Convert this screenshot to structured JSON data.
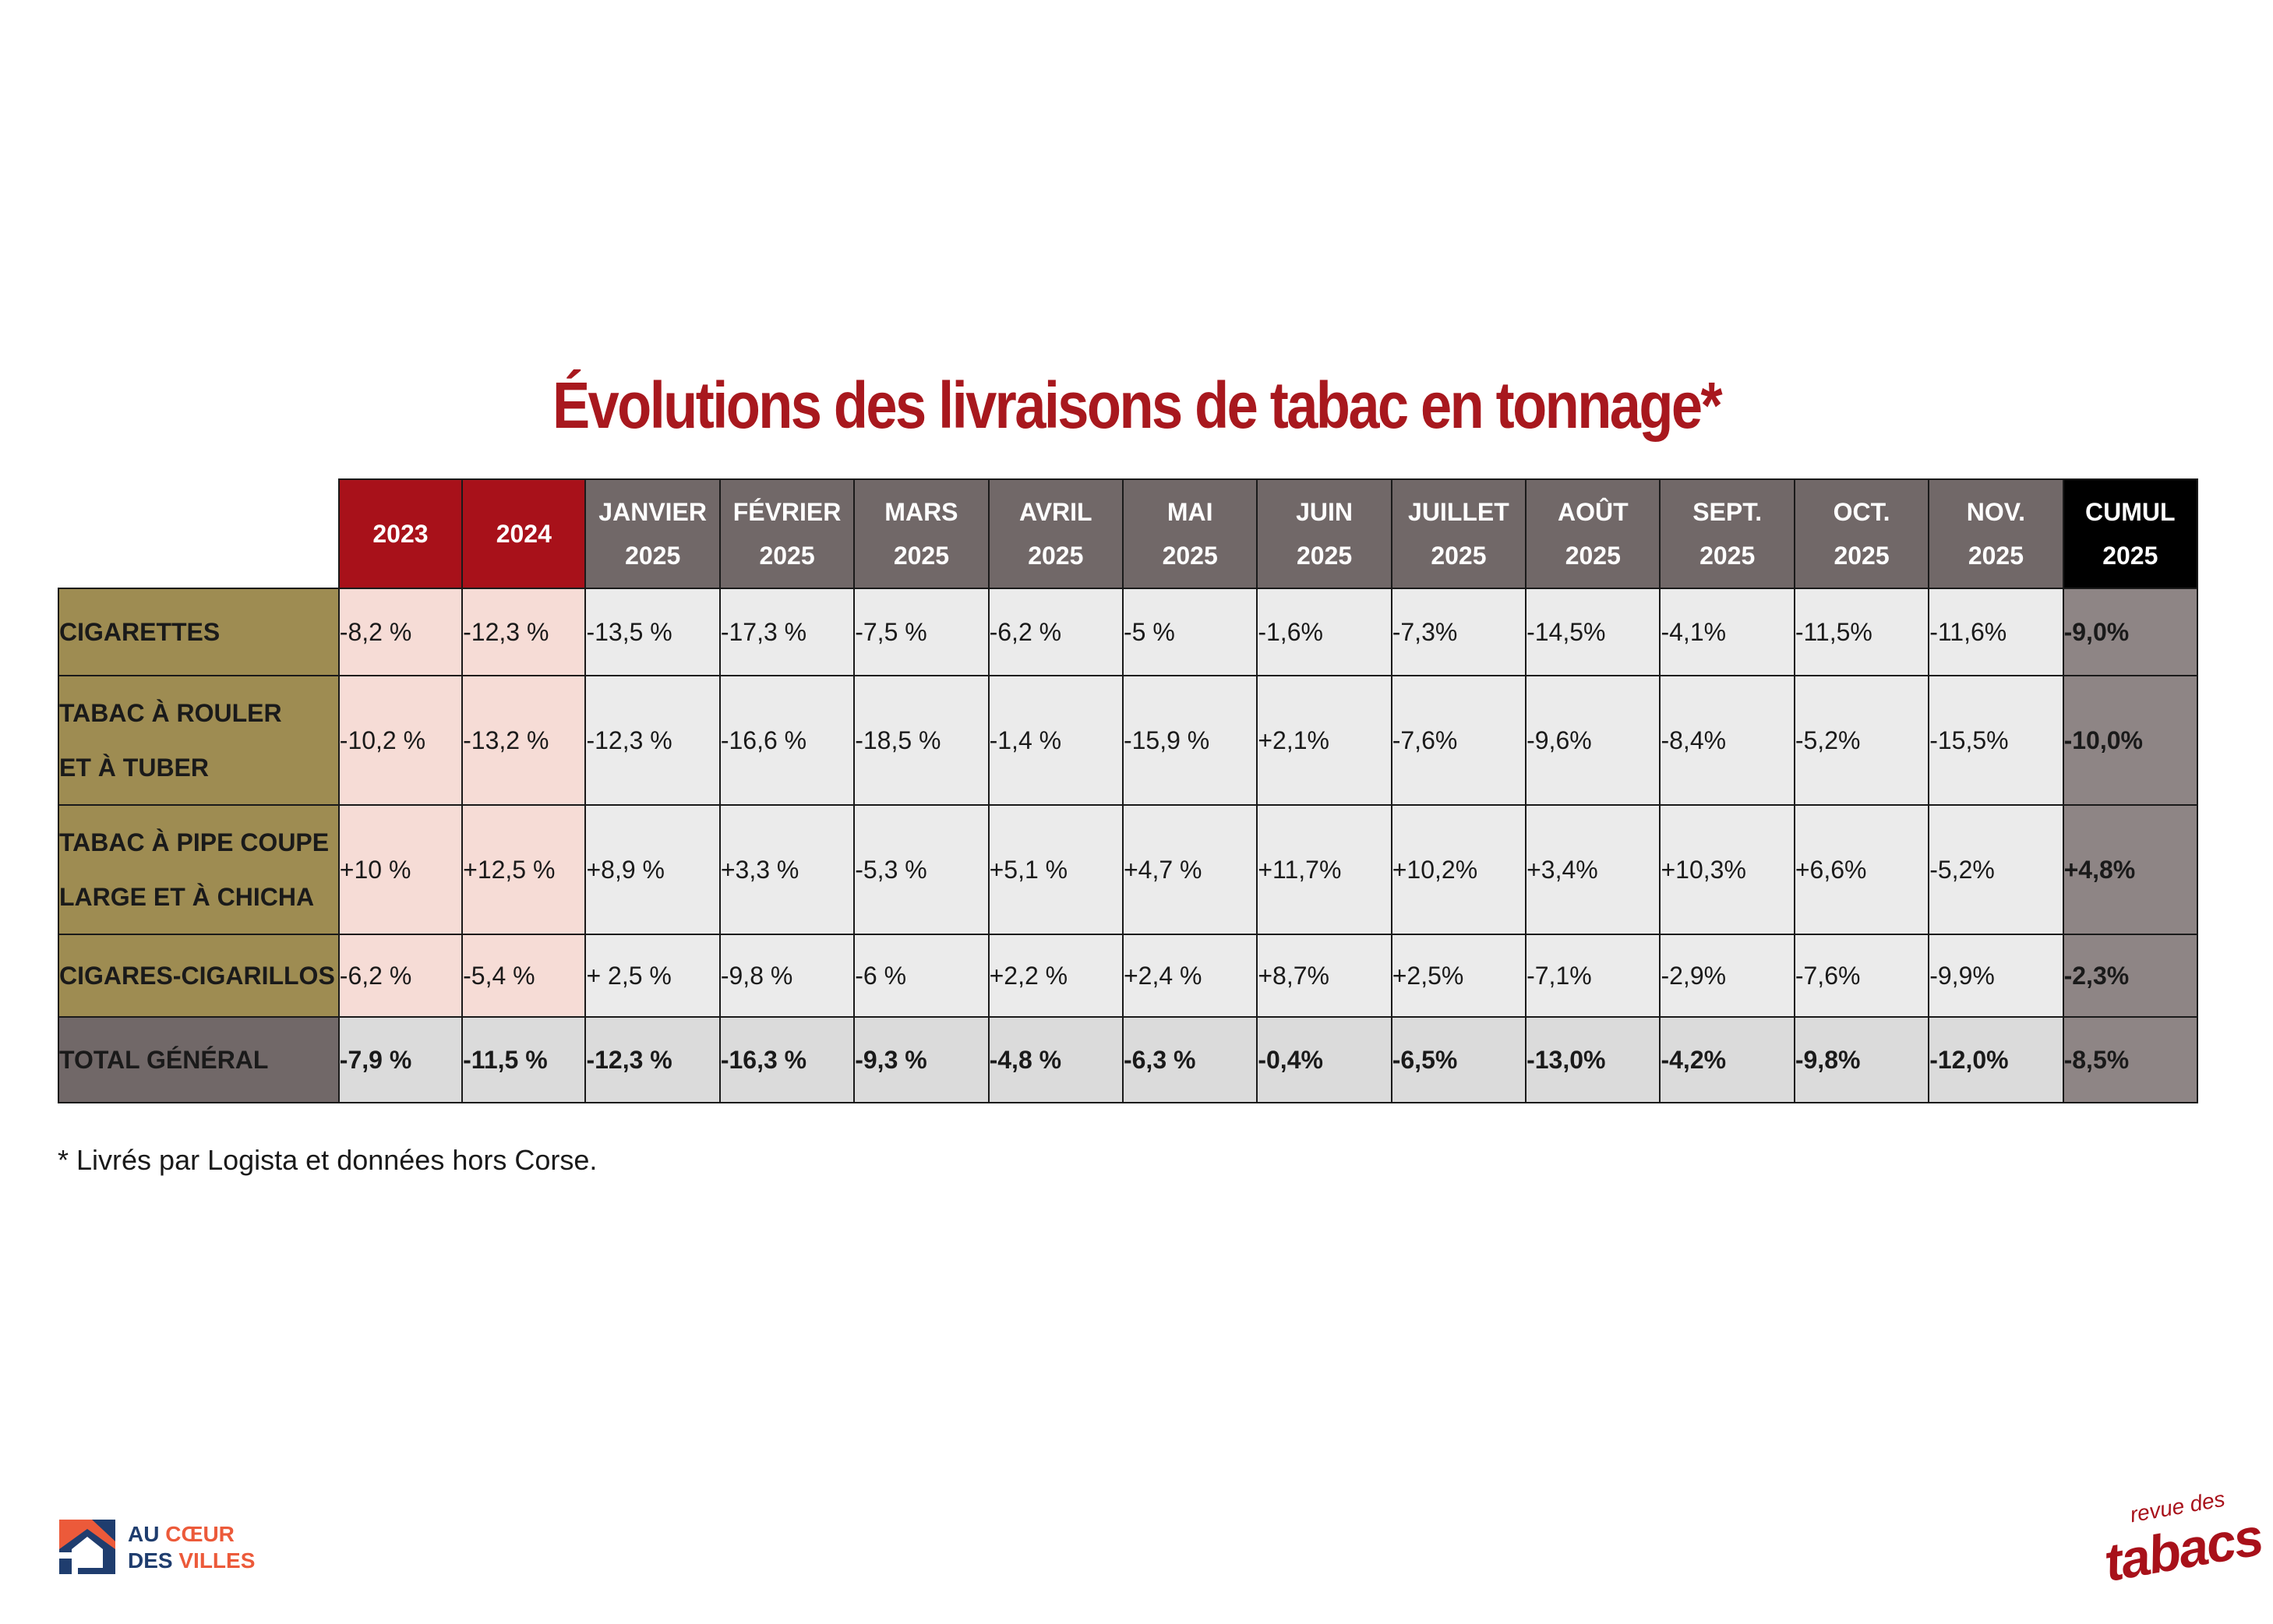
{
  "chart_data": {
    "type": "table",
    "title": "Évolutions des livraisons de tabac en tonnage*",
    "columns": [
      {
        "line1": "2023",
        "line2": ""
      },
      {
        "line1": "2024",
        "line2": ""
      },
      {
        "line1": "JANVIER",
        "line2": "2025"
      },
      {
        "line1": "FÉVRIER",
        "line2": "2025"
      },
      {
        "line1": "MARS",
        "line2": "2025"
      },
      {
        "line1": "AVRIL",
        "line2": "2025"
      },
      {
        "line1": "MAI",
        "line2": "2025"
      },
      {
        "line1": "JUIN",
        "line2": "2025"
      },
      {
        "line1": "JUILLET",
        "line2": "2025"
      },
      {
        "line1": "AOÛT",
        "line2": "2025"
      },
      {
        "line1": "SEPT.",
        "line2": "2025"
      },
      {
        "line1": "OCT.",
        "line2": "2025"
      },
      {
        "line1": "NOV.",
        "line2": "2025"
      },
      {
        "line1": "CUMUL",
        "line2": "2025"
      }
    ],
    "rows": [
      {
        "label_lines": [
          "CIGARETTES"
        ],
        "values": [
          "-8,2 %",
          "-12,3 %",
          "-13,5 %",
          "-17,3 %",
          "-7,5 %",
          "-6,2 %",
          "-5 %",
          "-1,6%",
          "-7,3%",
          "-14,5%",
          "-4,1%",
          "-11,5%",
          "-11,6%",
          "-9,0%"
        ]
      },
      {
        "label_lines": [
          "TABAC À ROULER",
          "ET À TUBER"
        ],
        "values": [
          "-10,2 %",
          "-13,2 %",
          "-12,3 %",
          "-16,6 %",
          "-18,5 %",
          "-1,4 %",
          "-15,9 %",
          "+2,1%",
          "-7,6%",
          "-9,6%",
          "-8,4%",
          "-5,2%",
          "-15,5%",
          "-10,0%"
        ]
      },
      {
        "label_lines": [
          "TABAC À PIPE COUPE",
          "LARGE ET À CHICHA"
        ],
        "values": [
          "+10 %",
          "+12,5 %",
          "+8,9 %",
          "+3,3 %",
          "-5,3 %",
          "+5,1 %",
          "+4,7 %",
          "+11,7%",
          "+10,2%",
          "+3,4%",
          "+10,3%",
          "+6,6%",
          "-5,2%",
          "+4,8%"
        ]
      },
      {
        "label_lines": [
          "CIGARES-CIGARILLOS"
        ],
        "values": [
          "-6,2 %",
          "-5,4 %",
          "+ 2,5 %",
          "-9,8 %",
          "-6 %",
          "+2,2 %",
          "+2,4 %",
          "+8,7%",
          "+2,5%",
          "-7,1%",
          "-2,9%",
          "-7,6%",
          "-9,9%",
          "-2,3%"
        ]
      },
      {
        "label_lines": [
          "TOTAL GÉNÉRAL"
        ],
        "values": [
          "-7,9 %",
          "-11,5 %",
          "-12,3 %",
          "-16,3 %",
          "-9,3 %",
          "-4,8 %",
          "-6,3 %",
          "-0,4%",
          "-6,5%",
          "-13,0%",
          "-4,2%",
          "-9,8%",
          "-12,0%",
          "-8,5%"
        ]
      }
    ],
    "footnote": "* Livrés par Logista et données hors Corse."
  },
  "colors": {
    "title": "#a8181e",
    "year_header": "#a8111a",
    "month_header": "#716868",
    "cumul_header": "#000000",
    "row_label": "#9e8c52",
    "past_cell": "#f6dcd6",
    "current_cell": "#ebebeb",
    "cumul_cell": "#8e8585",
    "total_label": "#716868",
    "total_cell": "#dbdbdb"
  },
  "logos": {
    "left": {
      "word1": "AU",
      "word2": "CŒUR",
      "word3": "DES",
      "word4": "VILLES"
    },
    "right": {
      "small": "revue des",
      "big": "tabacs"
    }
  }
}
